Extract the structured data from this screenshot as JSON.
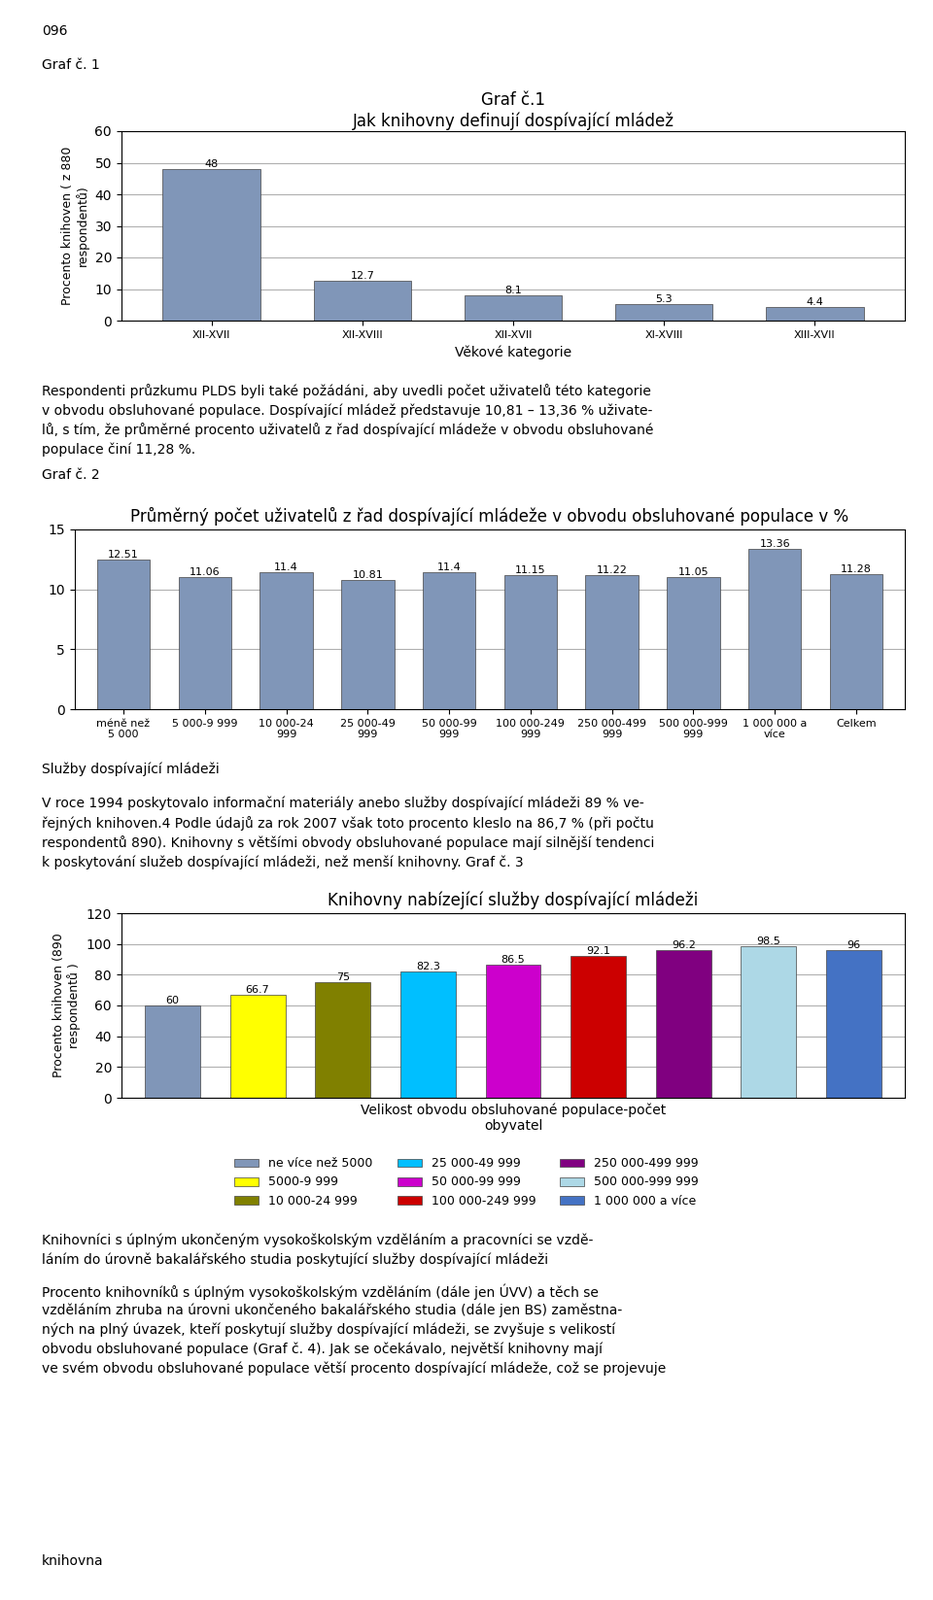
{
  "chart_data": [
    {
      "type": "bar",
      "title": "Graf č.1\nJak knihovny definují dospívající mládež",
      "xlabel": "Věkové kategorie",
      "ylabel": "Procento knihoven ( z 880\nrespondentů)",
      "categories": [
        "XII-XVII",
        "XII-XVIII",
        "XII-XVII",
        "XI-XVIII",
        "XIII-XVII"
      ],
      "values": [
        48,
        12.7,
        8.1,
        5.3,
        4.4
      ],
      "color": "#8096b8",
      "ylim": [
        0,
        60
      ],
      "yticks": [
        0,
        10,
        20,
        30,
        40,
        50,
        60
      ],
      "grid": true,
      "data_labels": true,
      "annotations": [
        "096",
        "Graf č. 1"
      ]
    },
    {
      "type": "bar",
      "title": "Průměrný počet uživatelů z řad dospívající mládeže v obvodu obsluhované populace v %",
      "categories": [
        "méně než\n5 000",
        "5 000-9 999",
        "10 000-24\n999",
        "25 000-49\n999",
        "50 000-99\n999",
        "100 000-249\n999",
        "250 000-499\n999",
        "500 000-999\n999",
        "1 000 000 a\nvíce",
        "Celkem"
      ],
      "values": [
        12.51,
        11.06,
        11.4,
        10.81,
        11.4,
        11.15,
        11.22,
        11.05,
        13.36,
        11.28
      ],
      "color": "#8096b8",
      "ylim": [
        0,
        15
      ],
      "yticks": [
        0,
        5,
        10,
        15
      ],
      "grid": true,
      "data_labels": true,
      "annotations": [
        "Respondenti průzkumu PLDS byli také požádáni, aby uvedli počet uživatelů této kategorie",
        "v obvodu obsluhované populace. Dospívající mládež představuje 10,81 – 13,36 % uživate-",
        "lů, s tím, že průměrné procento uživatelů z řad dospívající mládeže v obvodu obsluhované",
        "populace činí 11,28 %.",
        "Graf č. 2"
      ]
    },
    {
      "type": "bar",
      "title": "Knihovny nabízející služby dospívající mládeži",
      "xlabel": "Velikost obvodu obsluhované populace-počet\nobyvatel",
      "ylabel": "Procento knihoven (890\nrespondentů )",
      "categories": [
        "ne více než 5000",
        "5000-9 999",
        "10 000-24 999",
        "25 000-49 999",
        "50 000-99 999",
        "100 000-249 999",
        "250 000-499 999",
        "500 000-999 999",
        "1 000 000 a více"
      ],
      "values": [
        60,
        66.7,
        75,
        82.3,
        86.5,
        92.1,
        96.2,
        98.5,
        96
      ],
      "colors": [
        "#8096b8",
        "#ffff00",
        "#808000",
        "#00bfff",
        "#cc00cc",
        "#cc0000",
        "#800080",
        "#add8e6",
        "#4472c4"
      ],
      "ylim": [
        0,
        120
      ],
      "yticks": [
        0,
        20,
        40,
        60,
        80,
        100,
        120
      ],
      "grid": true,
      "data_labels": true,
      "tick_labels": "y",
      "legend": "upper center",
      "annotations": [
        "Služby dospívající mládeži",
        "V roce 1994 poskytovalo informační materiály anebo služby dospívající mládeži 89 % ve-",
        "řejných knihoven.4 Podle údajů za rok 2007 však toto procento kleslo na 86,7 % (při počtu",
        "respondentů 890). Knihovny s většími obvody obsluhované populace mají silnější tendenci",
        "k poskytování služeb dospívající mládeži, než menší knihovny. Graf č. 3",
        "Knihovníci s úplným ukončeným vysokoškolským vzděláním a pracovníci se vzdě-",
        "láním do úrovně bakalářského studia poskytující služby dospívající mládeži",
        "Procento knihovníků s úplným vysokoškolským vzděláním (dále jen ÚVV) a těch se",
        "vzděláním zhruba na úrovni ukončeného bakalářského studia (dále jen BS) zaměstna-",
        "ných na plný úvazek, kteří poskytují služby dospívající mládeži, se zvyšuje s velikostí",
        "obvodu obsluhované populace (Graf č. 4). Jak se očekávalo, největší knihovny mají",
        "ve svém obvodu obsluhované populace větší procento dospívající mládeže, což se projevuje",
        "knihovna"
      ]
    }
  ]
}
